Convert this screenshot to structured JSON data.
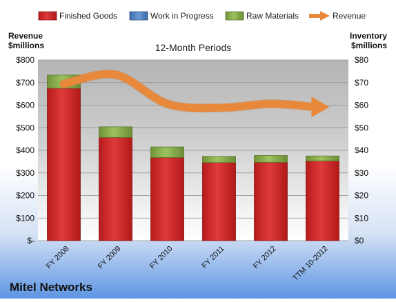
{
  "chart_data": {
    "type": "bar",
    "subtitle": "12-Month Periods",
    "company": "Mitel Networks",
    "left_axis_label_line1": "Revenue",
    "left_axis_label_line2": "$millions",
    "right_axis_label_line1": "Inventory",
    "right_axis_label_line2": "$millions",
    "left_ticks": [
      "$-",
      "$100",
      "$200",
      "$300",
      "$400",
      "$500",
      "$600",
      "$700",
      "$800"
    ],
    "right_ticks": [
      "$0",
      "$10",
      "$20",
      "$30",
      "$40",
      "$50",
      "$60",
      "$70",
      "$80"
    ],
    "left_ylim": [
      0,
      800
    ],
    "right_ylim": [
      0,
      80
    ],
    "categories": [
      "FY 2008",
      "FY 2009",
      "FY 2010",
      "FY 2011",
      "FY 2012",
      "TTM 10-2012"
    ],
    "series": [
      {
        "name": "Finished Goods",
        "axis": "right",
        "color": "#d22a2a",
        "values": [
          67.5,
          45.7,
          36.8,
          34.6,
          34.7,
          35.3
        ]
      },
      {
        "name": "Work in Progress",
        "axis": "right",
        "color": "#4f81bd",
        "values": [
          0,
          0,
          0,
          0,
          0,
          0
        ]
      },
      {
        "name": "Raw Materials",
        "axis": "right",
        "color": "#8bb04e",
        "values": [
          5.8,
          4.7,
          4.7,
          2.7,
          3.0,
          2.2
        ]
      },
      {
        "name": "Revenue",
        "axis": "left",
        "type": "line",
        "color": "#e8883a",
        "values": [
          694,
          735,
          606,
          588,
          606,
          592
        ]
      }
    ],
    "legend_position": "top",
    "grid": true
  }
}
